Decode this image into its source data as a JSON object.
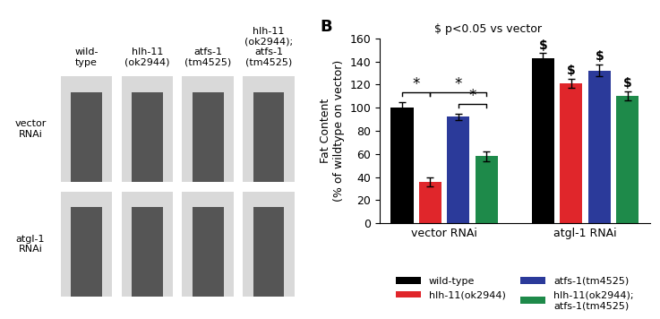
{
  "panel_a": {
    "columns": [
      "wild-\ntype",
      "hlh-11\n(ok2944)",
      "atfs-1\n(tm4525)",
      "hlh-11\n(ok2944);\natfs-1\n(tm4525)"
    ],
    "rows": [
      "vector\nRNAi",
      "atgl-1\nRNAi"
    ]
  },
  "chart_data": {
    "type": "bar",
    "title": "B",
    "annotations": [
      "$ p<0.05 vs vector"
    ],
    "y_label": "Fat Content\n(% of wildtype on vector)",
    "categories": [
      "vector RNAi",
      "atgl-1 RNAi"
    ],
    "series": [
      {
        "name": "wild-type",
        "color": "#000000",
        "values": [
          100,
          143
        ],
        "errors": [
          5,
          4
        ],
        "marks": [
          null,
          "$"
        ]
      },
      {
        "name": "hlh-11(ok2944)",
        "color": "#e0262b",
        "values": [
          36,
          121
        ],
        "errors": [
          4,
          4
        ],
        "marks": [
          null,
          "$"
        ]
      },
      {
        "name": "atfs-1(tm4525)",
        "color": "#2b3a9a",
        "values": [
          92,
          132
        ],
        "errors": [
          3,
          5
        ],
        "marks": [
          null,
          "$"
        ]
      },
      {
        "name": "hlh-11(ok2944);\natfs-1(tm4525)",
        "color": "#1e8a4a",
        "values": [
          58,
          110
        ],
        "errors": [
          4,
          4
        ],
        "marks": [
          null,
          "$"
        ]
      }
    ],
    "comparisons": [
      {
        "category": "vector RNAi",
        "from": "wild-type",
        "to": "hlh-11(ok2944)",
        "text": "*"
      },
      {
        "category": "vector RNAi",
        "from": "atfs-1(tm4525)",
        "to": "hlh-11(ok2944);\natfs-1(tm4525)",
        "text": "*"
      },
      {
        "category": "vector RNAi",
        "from": "hlh-11(ok2944)",
        "to": "hlh-11(ok2944);\natfs-1(tm4525)",
        "text": "*"
      }
    ],
    "ylim": [
      0,
      160
    ],
    "yticks": [
      0,
      20,
      40,
      60,
      80,
      100,
      120,
      140,
      160
    ],
    "legend": "bottom",
    "grid": false
  }
}
